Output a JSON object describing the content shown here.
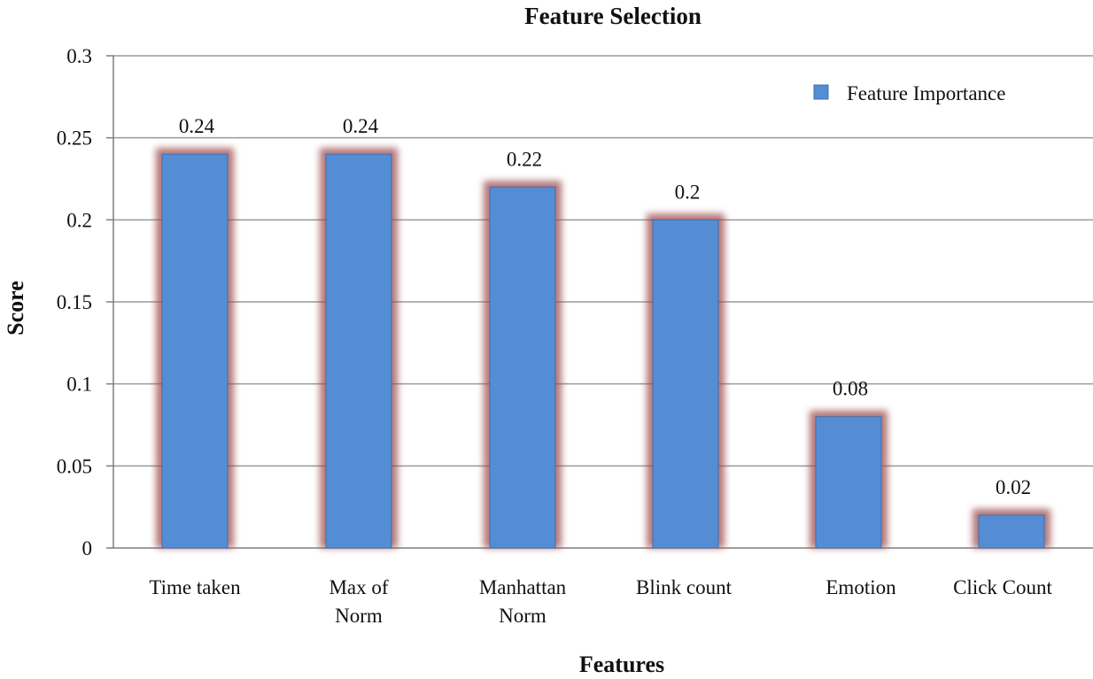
{
  "chart_data": {
    "type": "bar",
    "title": "Feature Selection",
    "xlabel": "Features",
    "ylabel": "Score",
    "categories": [
      [
        "Time taken"
      ],
      [
        "Max of",
        "Norm"
      ],
      [
        "Manhattan",
        "Norm"
      ],
      [
        "Blink count"
      ],
      [
        "Emotion"
      ],
      [
        "Click Count"
      ]
    ],
    "series": [
      {
        "name": "Feature Importance",
        "values": [
          0.24,
          0.24,
          0.22,
          0.2,
          0.08,
          0.02
        ],
        "labels": [
          "0.24",
          "0.24",
          "0.22",
          "0.2",
          "0.08",
          "0.02"
        ]
      }
    ],
    "yticks": [
      0,
      0.05,
      0.1,
      0.15,
      0.2,
      0.25,
      0.3
    ],
    "ytick_labels": [
      "0",
      "0.05",
      "0.1",
      "0.15",
      "0.2",
      "0.25",
      "0.3"
    ],
    "ylim": [
      0,
      0.3
    ],
    "grid": true,
    "legend": "top-right",
    "colors": {
      "bar": "#548dd4",
      "bar_edge": "#3f6fb0",
      "glow": "#9b4a4a",
      "grid": "#9a9a9a",
      "axis": "#7f7f7f"
    }
  }
}
